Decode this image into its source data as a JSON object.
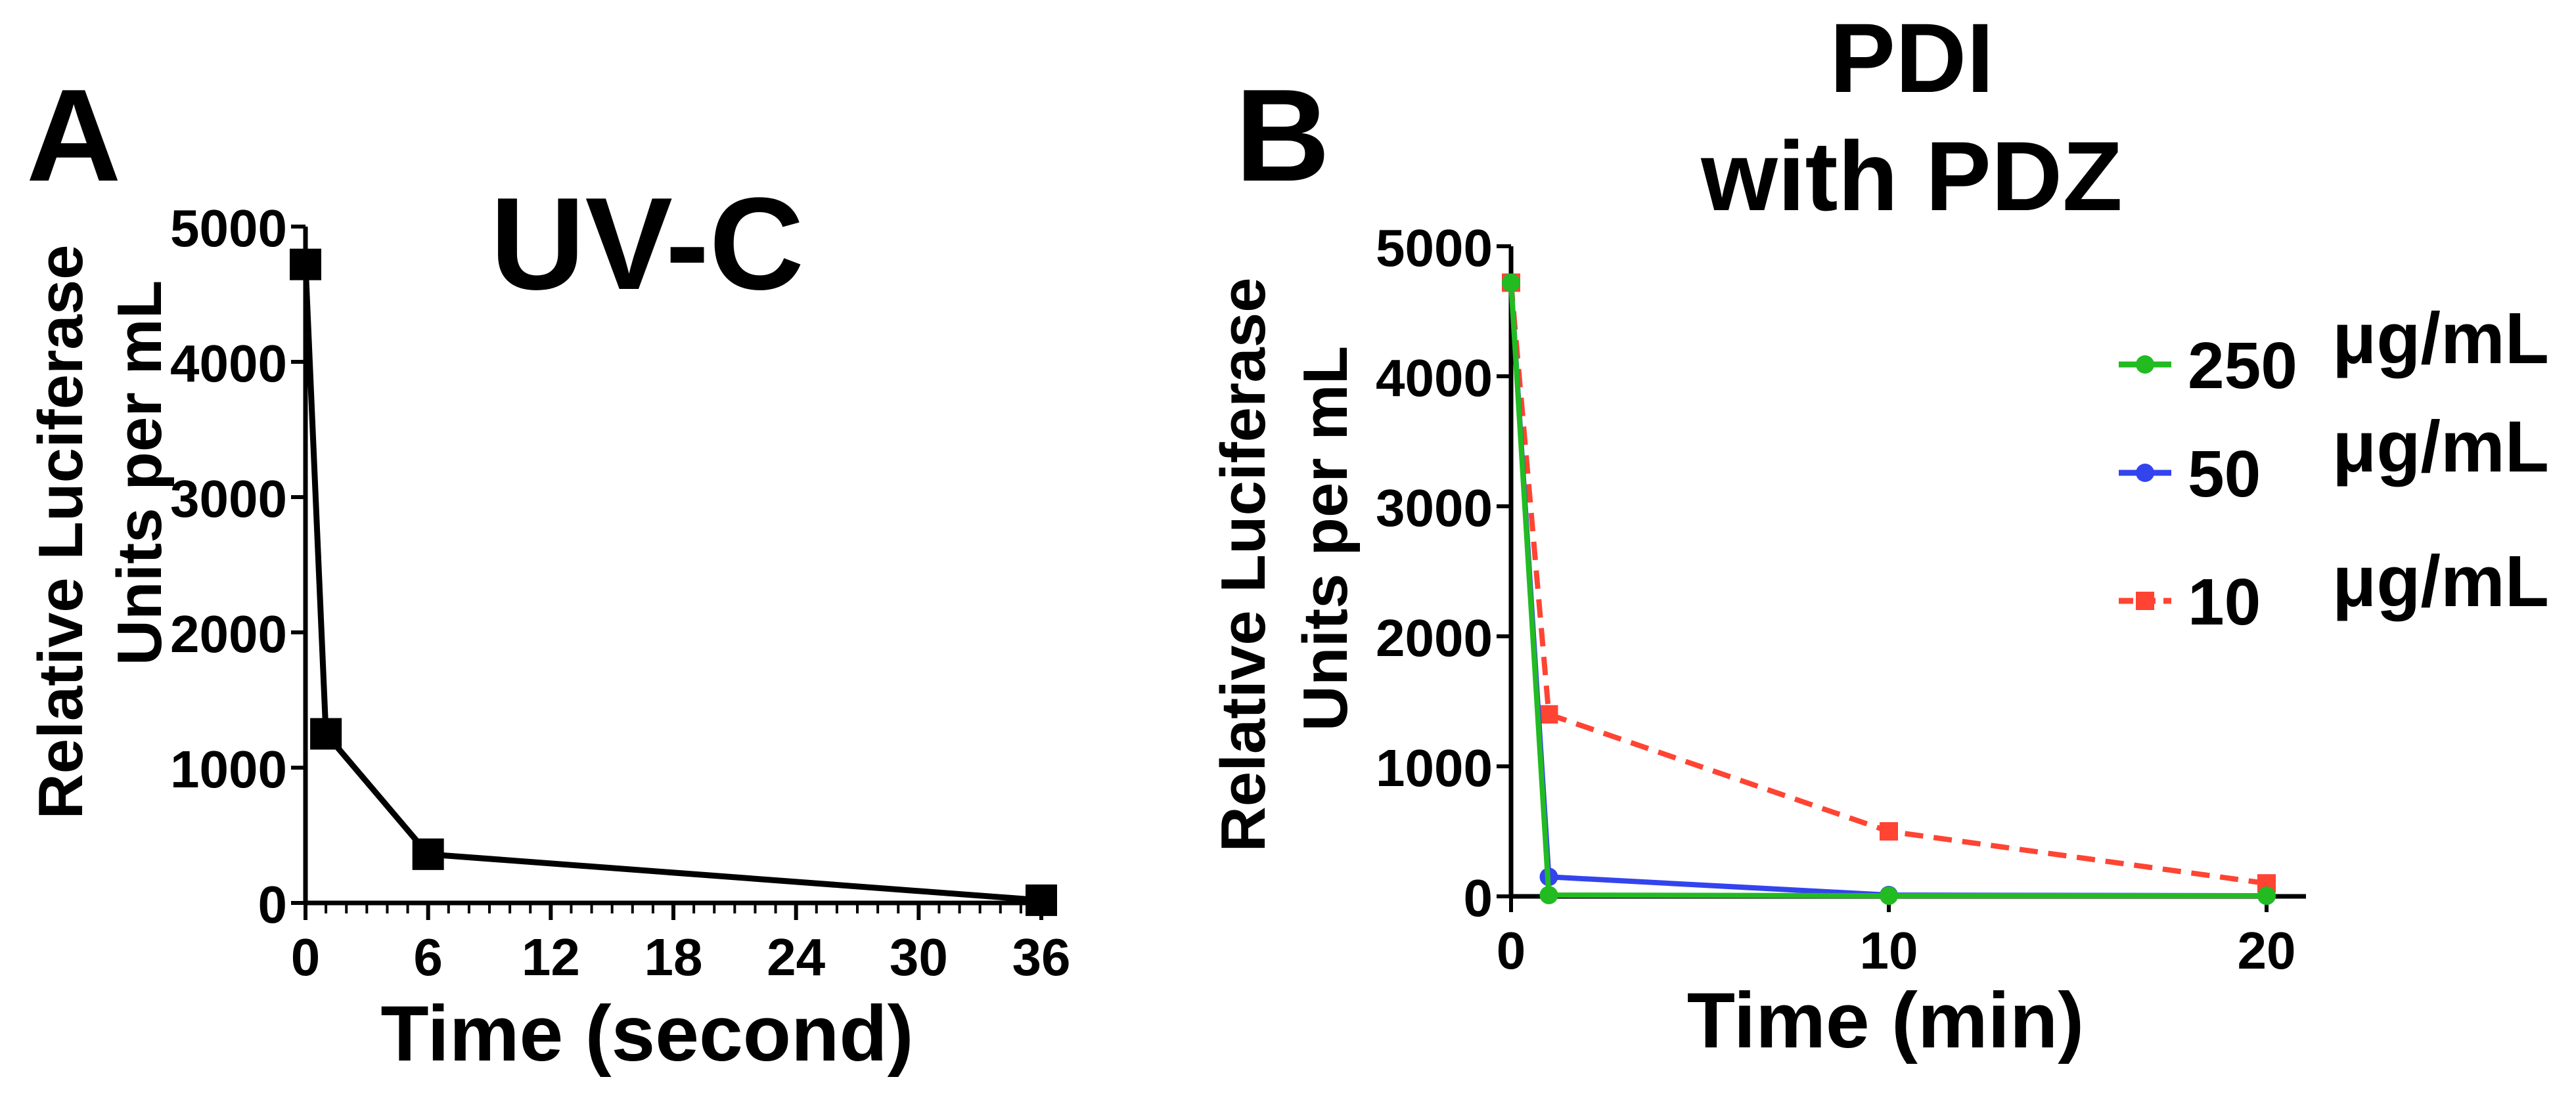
{
  "chart_data": [
    {
      "panel_label": "A",
      "type": "line",
      "title": "UV-C",
      "xlabel": "Time (second)",
      "ylabel": [
        "Relative Luciferase",
        "Units per mL"
      ],
      "xlim": [
        0,
        36
      ],
      "ylim": [
        0,
        5000
      ],
      "x_ticks": [
        0,
        6,
        12,
        18,
        24,
        30,
        36
      ],
      "x_tick_labels": [
        "0",
        "6",
        "12",
        "18",
        "24",
        "30",
        "36"
      ],
      "y_ticks": [
        0,
        1000,
        2000,
        3000,
        4000,
        5000
      ],
      "y_tick_labels": [
        "0",
        "1000",
        "2000",
        "3000",
        "4000",
        "5000"
      ],
      "series": [
        {
          "name": "UV-C",
          "color": "#000000",
          "x": [
            0,
            1,
            6,
            36
          ],
          "values": [
            4720,
            1250,
            360,
            20
          ]
        }
      ]
    },
    {
      "panel_label": "B",
      "type": "line",
      "title": [
        "PDI",
        "with PDZ"
      ],
      "xlabel": "Time (min)",
      "ylabel": [
        "Relative Luciferase",
        "Units per mL"
      ],
      "xlim": [
        0,
        20
      ],
      "ylim": [
        0,
        5000
      ],
      "x_ticks": [
        0,
        10,
        20
      ],
      "x_tick_labels": [
        "0",
        "10",
        "20"
      ],
      "y_ticks": [
        0,
        1000,
        2000,
        3000,
        4000,
        5000
      ],
      "y_tick_labels": [
        "0",
        "1000",
        "2000",
        "3000",
        "4000",
        "5000"
      ],
      "legend_position": "right",
      "series": [
        {
          "name": "250",
          "unit": "μg/mL",
          "color": "#22bb22",
          "dashed": false,
          "x": [
            0,
            1,
            10,
            20
          ],
          "values": [
            4720,
            10,
            5,
            5
          ]
        },
        {
          "name": "50",
          "unit": "μg/mL",
          "color": "#3344ee",
          "dashed": false,
          "x": [
            0,
            1,
            10,
            20
          ],
          "values": [
            4720,
            150,
            10,
            5
          ]
        },
        {
          "name": "10",
          "unit": "μg/mL",
          "color": "#ff4433",
          "dashed": true,
          "x": [
            0,
            1,
            10,
            20
          ],
          "values": [
            4720,
            1400,
            500,
            100
          ]
        }
      ]
    }
  ]
}
